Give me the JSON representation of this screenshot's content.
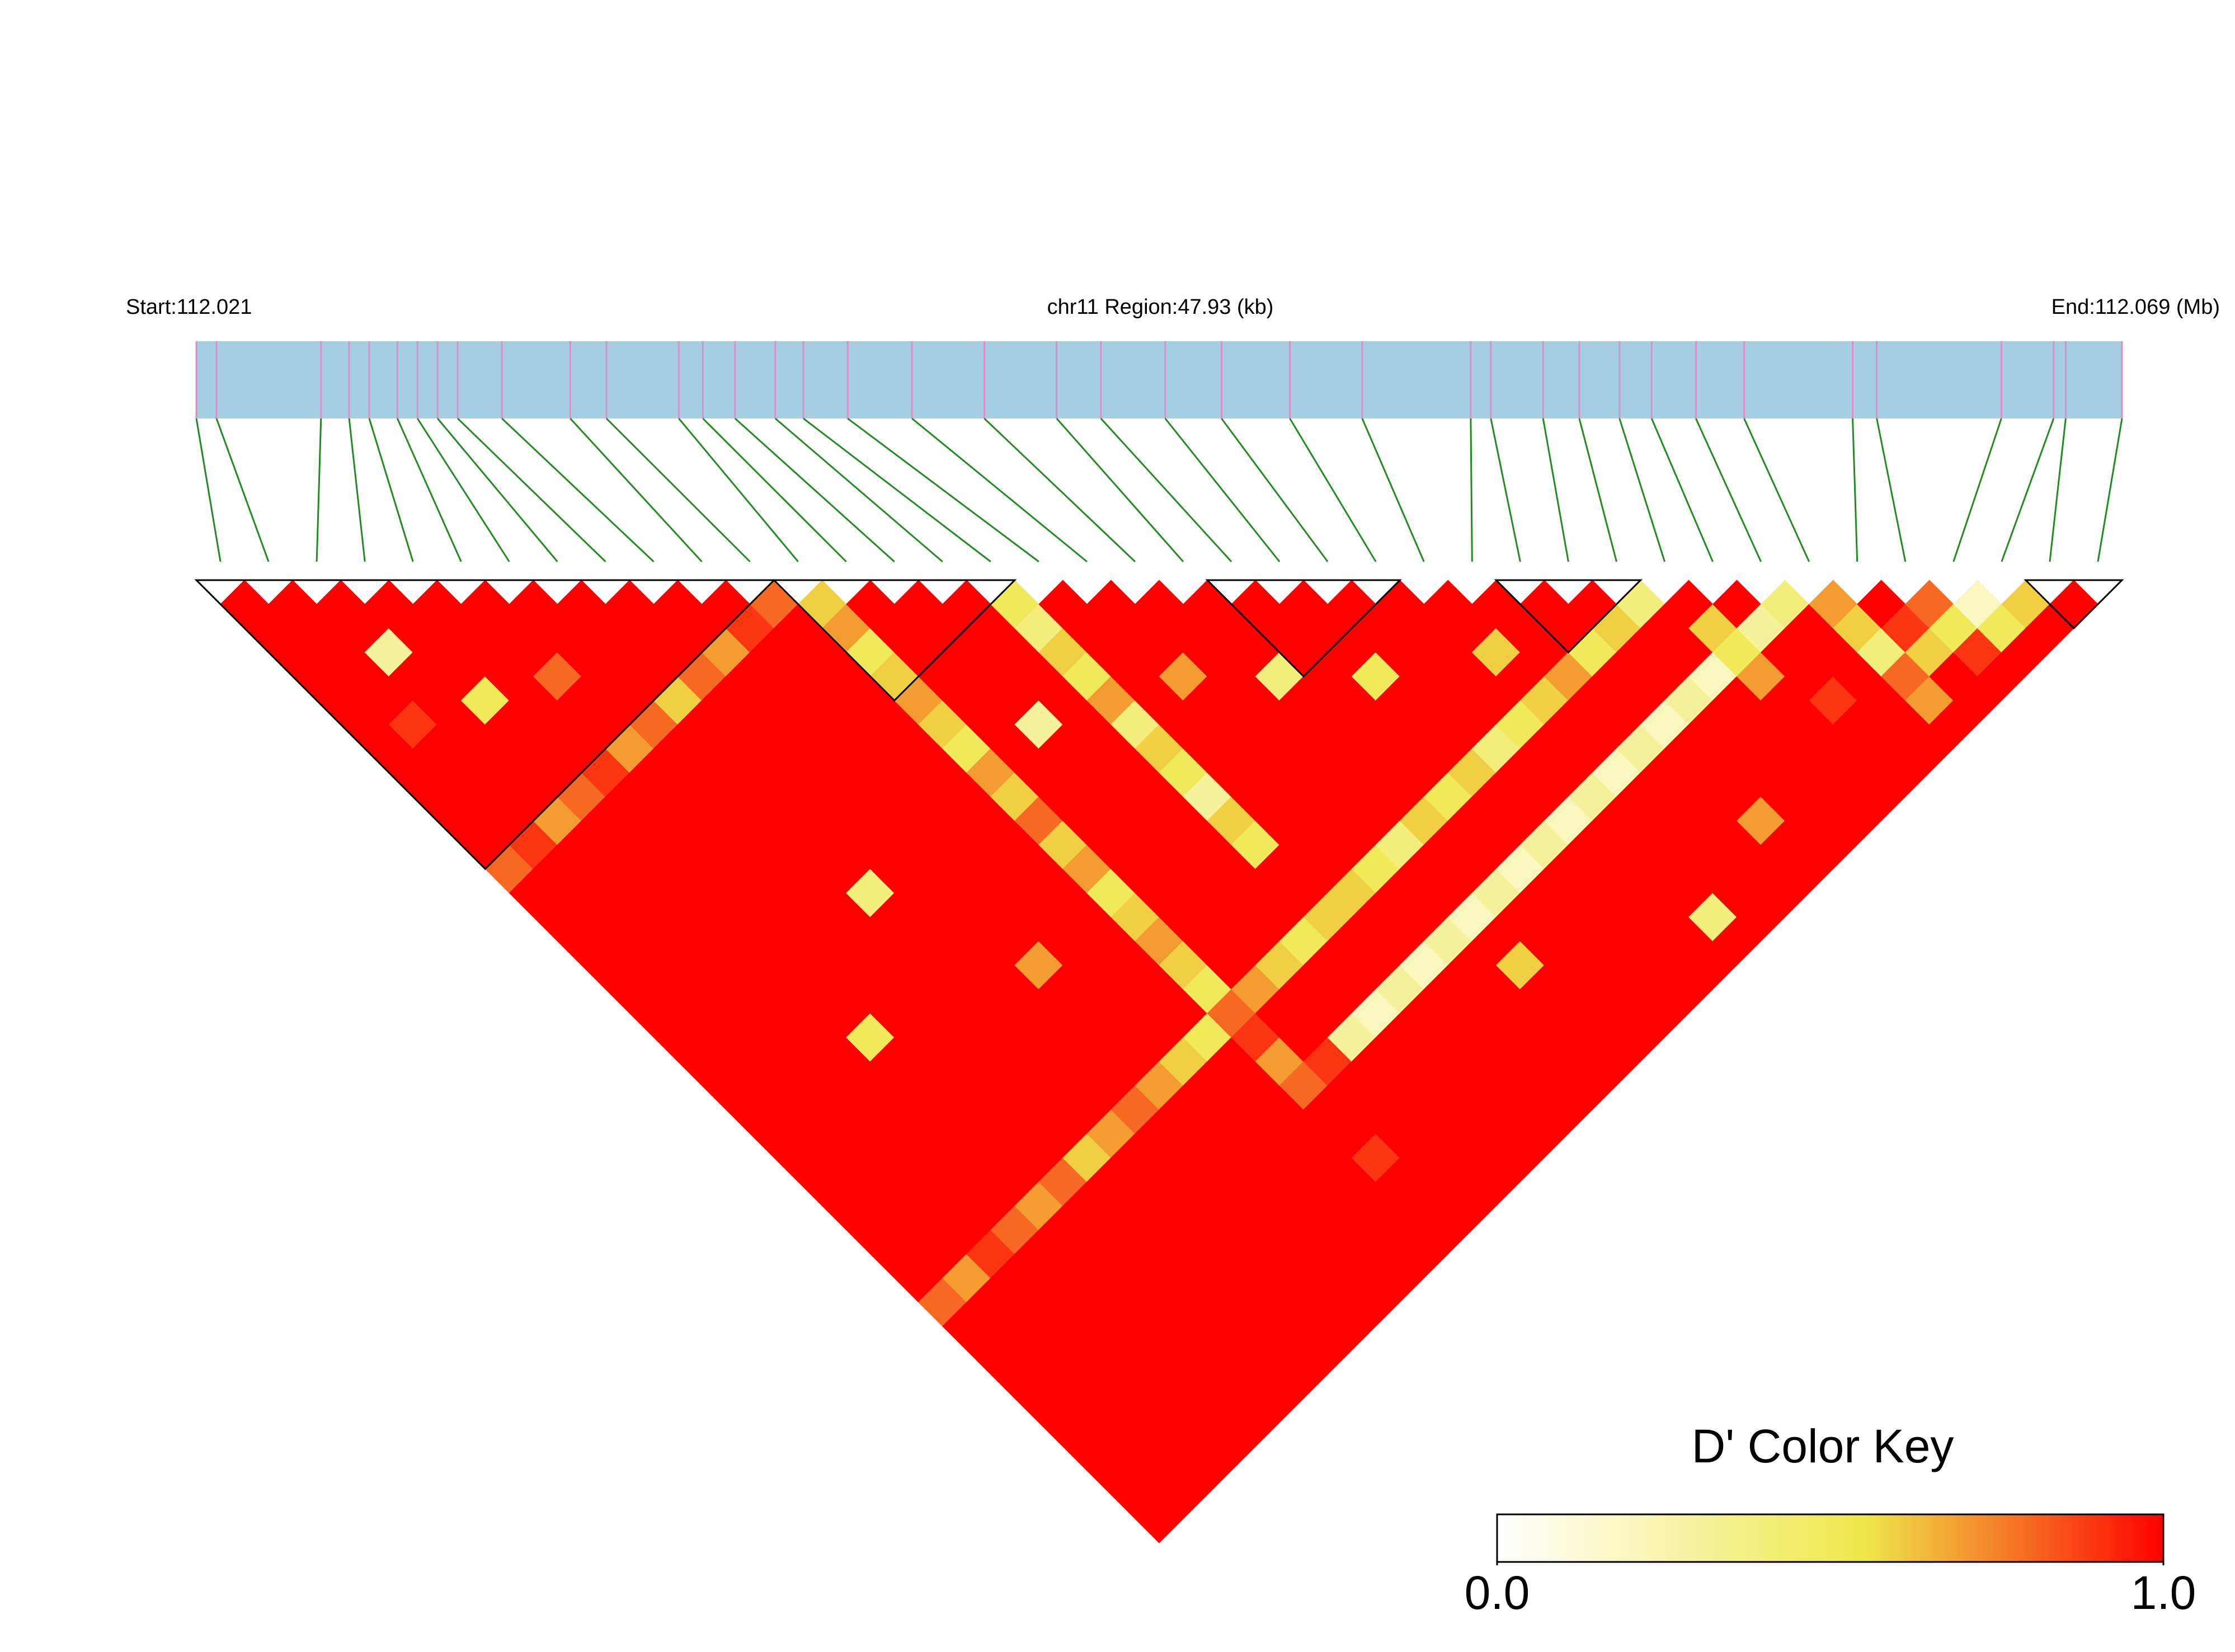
{
  "chart_data": {
    "type": "ld_heatmap",
    "annotations": [
      "Start:112.021",
      "chr11 Region:47.93 (kb)",
      "End:112.069 (Mb)"
    ],
    "xlim": [
      112.021,
      112.0689
    ],
    "positions": [
      112.021,
      112.0215,
      112.0241,
      112.0248,
      112.0253,
      112.026,
      112.0265,
      112.027,
      112.0275,
      112.0286,
      112.0303,
      112.0312,
      112.033,
      112.0336,
      112.0344,
      112.0354,
      112.0361,
      112.0372,
      112.0388,
      112.0406,
      112.0424,
      112.0435,
      112.0451,
      112.0465,
      112.0482,
      112.05,
      112.0527,
      112.0532,
      112.0545,
      112.0554,
      112.0564,
      112.0572,
      112.0583,
      112.0595,
      112.0622,
      112.0628,
      112.0659,
      112.0672,
      112.0675,
      112.0689
    ],
    "dprime": [
      [
        1,
        1,
        1,
        1,
        1,
        1,
        1,
        1,
        1,
        1,
        1,
        0.8,
        1,
        1,
        1,
        1,
        1,
        1,
        1,
        1,
        1,
        1,
        1,
        1,
        1,
        1,
        1,
        1,
        1,
        0.8,
        1,
        1,
        1,
        1,
        1,
        1,
        1,
        1,
        1
      ],
      [
        1,
        1,
        1,
        1,
        1,
        0.9,
        1,
        1,
        1,
        1,
        0.9,
        1,
        1,
        1,
        1,
        1,
        1,
        1,
        1,
        1,
        1,
        1,
        1,
        1,
        1,
        1,
        1,
        1,
        0.7,
        1,
        1,
        1,
        1,
        1,
        1,
        1,
        1,
        1
      ],
      [
        1,
        1,
        0.3,
        1,
        1,
        1,
        1,
        1,
        1,
        0.7,
        1,
        1,
        1,
        1,
        1,
        1,
        1,
        1,
        1,
        1,
        1,
        1,
        1,
        1,
        1,
        1,
        1,
        0.9,
        1,
        1,
        1,
        1,
        1,
        1,
        1,
        1,
        1
      ],
      [
        1,
        1,
        1,
        1,
        0.5,
        1,
        1,
        1,
        0.8,
        1,
        1,
        1,
        1,
        1,
        1,
        1,
        1,
        1,
        1,
        1,
        1,
        1,
        1,
        1,
        1,
        1,
        0.8,
        1,
        1,
        1,
        1,
        1,
        1,
        1,
        1,
        1
      ],
      [
        1,
        1,
        1,
        1,
        1,
        1,
        1,
        0.9,
        1,
        1,
        1,
        1,
        1,
        1,
        1,
        1,
        1,
        1,
        0.5,
        1,
        1,
        1,
        1,
        1,
        1,
        0.7,
        1,
        1,
        1,
        1,
        1,
        1,
        1,
        1,
        1
      ],
      [
        1,
        1,
        1,
        0.8,
        1,
        1,
        0.7,
        1,
        1,
        1,
        1,
        1,
        1,
        1,
        1,
        1,
        1,
        1,
        1,
        1,
        1,
        1,
        1,
        1,
        0.8,
        1,
        1,
        1,
        1,
        1,
        1,
        1,
        1,
        1
      ],
      [
        1,
        1,
        1,
        1,
        1,
        0.8,
        1,
        1,
        1,
        1,
        1,
        1,
        1,
        1,
        1,
        1,
        1,
        1,
        1,
        1,
        1,
        1,
        1,
        0.6,
        1,
        1,
        1,
        1,
        1,
        1,
        1,
        1,
        1
      ],
      [
        1,
        1,
        1,
        1,
        0.6,
        1,
        1,
        1,
        1,
        1,
        1,
        1,
        0.4,
        1,
        1,
        1,
        1,
        1,
        1,
        1,
        1,
        1,
        0.7,
        1,
        1,
        1,
        1,
        1,
        1,
        1,
        1,
        1
      ],
      [
        1,
        1,
        1,
        0.8,
        1,
        1,
        1,
        1,
        1,
        1,
        1,
        1,
        1,
        1,
        1,
        1,
        1,
        1,
        1,
        1,
        1,
        0.8,
        1,
        1,
        1,
        1,
        1,
        1,
        1,
        1,
        1
      ],
      [
        1,
        1,
        0.7,
        1,
        1,
        1,
        1,
        1,
        1,
        1,
        1,
        1,
        1,
        1,
        1,
        0.7,
        1,
        1,
        1,
        1,
        0.7,
        1,
        1,
        1,
        1,
        1,
        1,
        1,
        1,
        1
      ],
      [
        1,
        0.9,
        1,
        1,
        1,
        1,
        1,
        1,
        1,
        1,
        1,
        1,
        1,
        1,
        1,
        1,
        1,
        1,
        1,
        0.6,
        1,
        1,
        1,
        1,
        1,
        1,
        1,
        1,
        1
      ],
      [
        0.8,
        1,
        1,
        1,
        1,
        1,
        1,
        1,
        1,
        1,
        1,
        1,
        1,
        1,
        1,
        1,
        1,
        1,
        0.5,
        1,
        1,
        1,
        1,
        1,
        1,
        1,
        1,
        1
      ],
      [
        0.6,
        0.7,
        0.5,
        0.6,
        0.7,
        0.6,
        0.5,
        0.7,
        0.6,
        0.8,
        0.6,
        0.7,
        0.5,
        0.6,
        0.7,
        0.6,
        0.5,
        0.8,
        0.9,
        0.7,
        0.8,
        1,
        1,
        0.9,
        1,
        1,
        1
      ],
      [
        1,
        1,
        1,
        1,
        1,
        1,
        1,
        1,
        1,
        1,
        1,
        1,
        1,
        1,
        1,
        1,
        0.7,
        1,
        1,
        0.9,
        1,
        1,
        1,
        1,
        1,
        1
      ],
      [
        1,
        1,
        1,
        1,
        1,
        0.3,
        1,
        1,
        1,
        1,
        1,
        1,
        1,
        1,
        1,
        0.6,
        1,
        1,
        0.3,
        1,
        1,
        1,
        1,
        1,
        1
      ],
      [
        1,
        1,
        1,
        1,
        1,
        1,
        1,
        1,
        1,
        1,
        1,
        1,
        1,
        1,
        0.5,
        1,
        1,
        0.2,
        1,
        1,
        1,
        1,
        1,
        1
      ],
      [
        0.5,
        0.4,
        0.6,
        0.5,
        0.7,
        0.4,
        0.6,
        0.5,
        0.3,
        0.6,
        0.5,
        1,
        1,
        0.6,
        1,
        1,
        0.3,
        1,
        1,
        1,
        1,
        1,
        1
      ],
      [
        1,
        1,
        1,
        1,
        1,
        1,
        1,
        1,
        1,
        1,
        1,
        1,
        0.6,
        1,
        1,
        0.2,
        1,
        1,
        1,
        1,
        1,
        1
      ],
      [
        1,
        1,
        1,
        0.7,
        1,
        1,
        1,
        1,
        1,
        1,
        1,
        0.5,
        1,
        1,
        0.3,
        1,
        1,
        1,
        1,
        1,
        1
      ],
      [
        1,
        1,
        1,
        1,
        1,
        1,
        1,
        1,
        1,
        1,
        0.4,
        1,
        1,
        0.2,
        1,
        0.6,
        1,
        1,
        1,
        1
      ],
      [
        1,
        1,
        1,
        0.4,
        1,
        1,
        1,
        1,
        1,
        0.6,
        1,
        1,
        0.3,
        1,
        1,
        1,
        1,
        1,
        1
      ],
      [
        1,
        1,
        1,
        1,
        1,
        1,
        1,
        1,
        0.5,
        1,
        1,
        0.2,
        1,
        1,
        1,
        1,
        1,
        1
      ],
      [
        1,
        1,
        1,
        0.5,
        1,
        1,
        1,
        0.6,
        1,
        1,
        0.3,
        1,
        1,
        1,
        1,
        1,
        1
      ],
      [
        1,
        1,
        1,
        1,
        1,
        1,
        0.4,
        1,
        1,
        0.2,
        1,
        1,
        1,
        1,
        1,
        1
      ],
      [
        1,
        1,
        1,
        1,
        1,
        0.5,
        1,
        1,
        0.3,
        1,
        1,
        1,
        1,
        0.4,
        1
      ],
      [
        1,
        1,
        0.6,
        1,
        0.6,
        1,
        1,
        0.2,
        1,
        1,
        1,
        1,
        1,
        1
      ],
      [
        1,
        1,
        1,
        0.7,
        1,
        1,
        0.3,
        1,
        1,
        1,
        1,
        1,
        1
      ],
      [
        1,
        1,
        0.5,
        1,
        1,
        0.2,
        1,
        1,
        1,
        0.7,
        1,
        1
      ],
      [
        1,
        0.6,
        1,
        1,
        0.3,
        1,
        1,
        1,
        1,
        1,
        1
      ],
      [
        0.4,
        1,
        1,
        0.2,
        1,
        1,
        1,
        1,
        1,
        1
      ],
      [
        1,
        0.6,
        0.5,
        0.7,
        1,
        1,
        1,
        1,
        1
      ],
      [
        1,
        0.3,
        1,
        1,
        0.9,
        1,
        1,
        1
      ],
      [
        0.4,
        1,
        1,
        1,
        1,
        1,
        1
      ],
      [
        0.7,
        0.6,
        0.4,
        0.8,
        0.7,
        1
      ],
      [
        1,
        0.9,
        0.6,
        1,
        1
      ],
      [
        0.8,
        0.5,
        0.9,
        1
      ],
      [
        0.2,
        0.5,
        1
      ],
      [
        0.6,
        1
      ],
      [
        1
      ]
    ],
    "blocks": [
      [
        0,
        11
      ],
      [
        12,
        16
      ],
      [
        21,
        24
      ],
      [
        27,
        29
      ],
      [
        38,
        39
      ]
    ],
    "color_scale": [
      {
        "value": 0,
        "color": "#ffffff"
      },
      {
        "value": 0.55,
        "color": "#eee84a"
      },
      {
        "value": 0.75,
        "color": "#f5822a"
      },
      {
        "value": 1,
        "color": "#ff0000"
      }
    ],
    "colorbar": {
      "title": "D' Color Key",
      "lim": [
        0,
        1
      ],
      "ticks": [
        {
          "value": 0,
          "label": "0.0"
        },
        {
          "value": 1,
          "label": "1.0"
        }
      ]
    },
    "bar_color": "#a6cee3",
    "snp_tick_color": "#e08cc8",
    "connector_color": "#228b22",
    "block_color": "#000000"
  }
}
